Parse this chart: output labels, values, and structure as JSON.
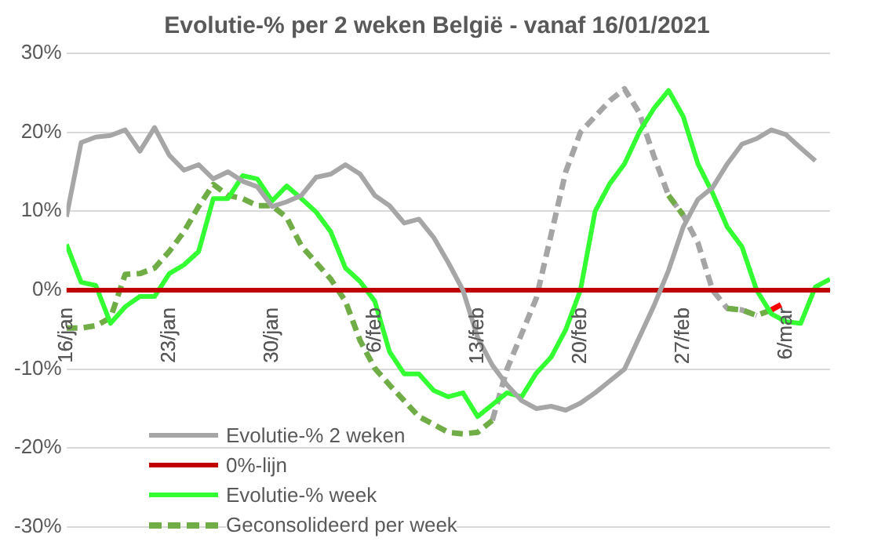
{
  "chart_data": {
    "type": "line",
    "title": "Evolutie-% per 2 weken België - vanaf 16/01/2021",
    "x": [
      "2021-01-16",
      "2021-01-17",
      "2021-01-18",
      "2021-01-19",
      "2021-01-20",
      "2021-01-21",
      "2021-01-22",
      "2021-01-23",
      "2021-01-24",
      "2021-01-25",
      "2021-01-26",
      "2021-01-27",
      "2021-01-28",
      "2021-01-29",
      "2021-01-30",
      "2021-01-31",
      "2021-02-01",
      "2021-02-02",
      "2021-02-03",
      "2021-02-04",
      "2021-02-05",
      "2021-02-06",
      "2021-02-07",
      "2021-02-08",
      "2021-02-09",
      "2021-02-10",
      "2021-02-11",
      "2021-02-12",
      "2021-02-13",
      "2021-02-14",
      "2021-02-15",
      "2021-02-16",
      "2021-02-17",
      "2021-02-18",
      "2021-02-19",
      "2021-02-20",
      "2021-02-21",
      "2021-02-22",
      "2021-02-23",
      "2021-02-24",
      "2021-02-25",
      "2021-02-26",
      "2021-02-27",
      "2021-02-28",
      "2021-03-01",
      "2021-03-02",
      "2021-03-03",
      "2021-03-04",
      "2021-03-05",
      "2021-03-06",
      "2021-03-07",
      "2021-03-08",
      "2021-03-09"
    ],
    "xlim": [
      "2021-01-16",
      "2021-03-09"
    ],
    "xticks": [
      {
        "value": "2021-01-16",
        "label": "16/jan"
      },
      {
        "value": "2021-01-23",
        "label": "23/jan"
      },
      {
        "value": "2021-01-30",
        "label": "30/jan"
      },
      {
        "value": "2021-02-06",
        "label": "6/feb"
      },
      {
        "value": "2021-02-13",
        "label": "13/feb"
      },
      {
        "value": "2021-02-20",
        "label": "20/feb"
      },
      {
        "value": "2021-02-27",
        "label": "27/feb"
      },
      {
        "value": "2021-03-06",
        "label": "6/mar"
      }
    ],
    "ylim": [
      -30,
      30
    ],
    "yticks": [
      {
        "value": -30,
        "label": "-30%"
      },
      {
        "value": -20,
        "label": "-20%"
      },
      {
        "value": -10,
        "label": "-10%"
      },
      {
        "value": 0,
        "label": "0%"
      },
      {
        "value": 10,
        "label": "10%"
      },
      {
        "value": 20,
        "label": "20%"
      },
      {
        "value": 30,
        "label": "30%"
      }
    ],
    "grid": "y",
    "legend": "bottom left",
    "marker": "none",
    "series": [
      {
        "name": "Evolutie-% 2 weken",
        "color": "#a6a6a6",
        "values": [
          9.3,
          18.7,
          19.4,
          19.6,
          20.3,
          17.6,
          20.6,
          17.1,
          15.2,
          15.9,
          14.1,
          15,
          13.8,
          13.1,
          10.6,
          11.2,
          12,
          14.3,
          14.7,
          15.9,
          14.7,
          12,
          10.7,
          8.5,
          9,
          6.7,
          3.5,
          0,
          -6,
          -9.5,
          -12,
          -14,
          -15,
          -14.7,
          -15.2,
          -14.3,
          -13,
          -11.5,
          -10,
          -6,
          -2,
          2.5,
          8,
          11.5,
          13,
          16,
          18.5,
          19.2,
          20.3,
          19.7,
          18,
          16.4,
          null
        ]
      },
      {
        "name": "0%-lijn",
        "color": "#c00000",
        "values": [
          0,
          0,
          0,
          0,
          0,
          0,
          0,
          0,
          0,
          0,
          0,
          0,
          0,
          0,
          0,
          0,
          0,
          0,
          0,
          0,
          0,
          0,
          0,
          0,
          0,
          0,
          0,
          0,
          0,
          0,
          0,
          0,
          0,
          0,
          0,
          0,
          0,
          0,
          0,
          0,
          0,
          0,
          0,
          0,
          0,
          0,
          0,
          0,
          0,
          0,
          0,
          0,
          0
        ]
      },
      {
        "name": "Evolutie-% week",
        "color": "#33ff33",
        "values": [
          5.8,
          1,
          0.6,
          -4.2,
          -2.1,
          -0.8,
          -0.8,
          2.1,
          3.2,
          4.9,
          11.6,
          11.6,
          14.5,
          14.1,
          11.3,
          13.2,
          11.6,
          9.9,
          7.4,
          2.8,
          1.1,
          -1.4,
          -7.8,
          -10.6,
          -10.6,
          -12.7,
          -13.5,
          -13,
          -16,
          -14.5,
          -13,
          -13.5,
          -10.5,
          -8.5,
          -5,
          0,
          10,
          13.5,
          16,
          20,
          23,
          25.3,
          22,
          16,
          12.3,
          8,
          5.5,
          0,
          -3,
          -4,
          -4.2,
          0.4,
          1.4
        ]
      },
      {
        "name": "Geconsolideerd per week",
        "color": "#70ad47",
        "line_style": "dashed",
        "values": [
          -4.8,
          -4.8,
          -4.5,
          -3.5,
          2,
          2.1,
          2.8,
          4.9,
          7.4,
          10.6,
          13.4,
          12,
          11.6,
          10.7,
          10.7,
          9.2,
          5.6,
          3.5,
          1.4,
          -1.4,
          -6.4,
          -9.9,
          -12,
          -14,
          -16,
          -17,
          -18,
          -18.2,
          -18,
          -16.5,
          null,
          null,
          null,
          null,
          null,
          null,
          null,
          null,
          null,
          null,
          null,
          12,
          9.5,
          null,
          null,
          -2.3,
          -2.5,
          -3.2,
          -2.5,
          null,
          null,
          null,
          null
        ]
      },
      {
        "color": "#a5a5a5",
        "line_style": "dashed",
        "values": [
          null,
          null,
          null,
          null,
          null,
          null,
          null,
          null,
          null,
          null,
          null,
          null,
          null,
          null,
          null,
          null,
          null,
          null,
          null,
          null,
          null,
          null,
          null,
          null,
          null,
          null,
          null,
          null,
          null,
          -16.5,
          -10,
          -5.5,
          -1,
          7,
          15,
          20,
          22,
          24,
          25.5,
          22.5,
          17,
          12,
          9.5,
          6,
          0,
          -2.3,
          -2.5,
          -3.2,
          null,
          null,
          null,
          null,
          null
        ]
      },
      {
        "color": "#ff0000",
        "line_style": "dashed",
        "values": [
          null,
          null,
          null,
          null,
          null,
          null,
          null,
          null,
          null,
          null,
          null,
          null,
          null,
          null,
          null,
          null,
          null,
          null,
          null,
          null,
          null,
          null,
          null,
          null,
          null,
          null,
          null,
          null,
          null,
          null,
          null,
          null,
          null,
          null,
          null,
          null,
          null,
          null,
          null,
          null,
          null,
          null,
          null,
          null,
          null,
          null,
          null,
          null,
          -2.5,
          -1.5,
          null,
          null,
          null
        ]
      }
    ]
  }
}
